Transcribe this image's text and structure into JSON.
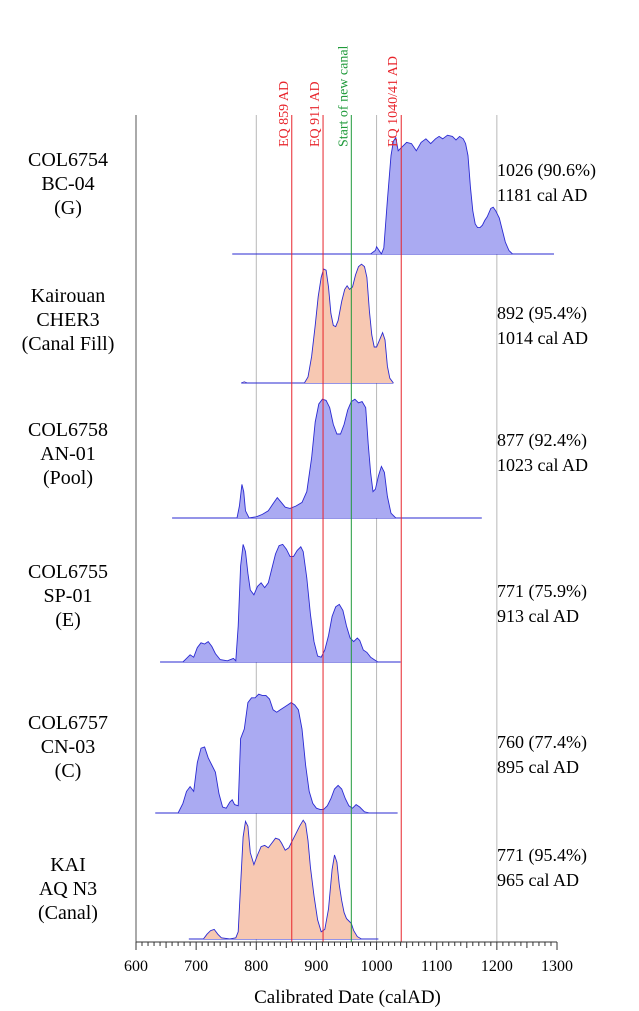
{
  "chart_data": {
    "type": "area",
    "xlabel": "Calibrated Date (calAD)",
    "xlim": [
      600,
      1300
    ],
    "xticks": [
      600,
      700,
      800,
      900,
      1000,
      1100,
      1200,
      1300
    ],
    "grid_lines": [
      800,
      1000,
      1200
    ],
    "event_lines": [
      {
        "x": 859,
        "label": "EQ 859 AD",
        "color": "#e8242b"
      },
      {
        "x": 911,
        "label": "EQ 911 AD",
        "color": "#e8242b"
      },
      {
        "x": 958,
        "label": "Start of new canal",
        "color": "#1f9a3a"
      },
      {
        "x": 1041,
        "label": "EQ 1040/41 AD",
        "color": "#e8242b"
      }
    ],
    "series": [
      {
        "label_lines": [
          "COL6754",
          "BC-04",
          "(G)"
        ],
        "range_lines": [
          "1026 (90.6%)",
          "1181 cal AD"
        ],
        "fill": "#aaaaf2",
        "stroke": "#2a2ad2",
        "line_from": 760,
        "line_to": 1295,
        "points": [
          [
            990,
            0
          ],
          [
            998,
            0.03
          ],
          [
            1000,
            0.06
          ],
          [
            1004,
            0.03
          ],
          [
            1008,
            0
          ],
          [
            1012,
            0.05
          ],
          [
            1018,
            0.45
          ],
          [
            1024,
            0.82
          ],
          [
            1028,
            0.94
          ],
          [
            1032,
            0.97
          ],
          [
            1036,
            0.86
          ],
          [
            1042,
            0.89
          ],
          [
            1050,
            0.93
          ],
          [
            1058,
            0.92
          ],
          [
            1066,
            0.86
          ],
          [
            1074,
            0.93
          ],
          [
            1082,
            0.96
          ],
          [
            1090,
            0.92
          ],
          [
            1098,
            0.96
          ],
          [
            1104,
            0.98
          ],
          [
            1110,
            0.96
          ],
          [
            1118,
            0.99
          ],
          [
            1126,
            0.98
          ],
          [
            1132,
            0.95
          ],
          [
            1138,
            0.98
          ],
          [
            1144,
            0.96
          ],
          [
            1148,
            0.92
          ],
          [
            1152,
            0.82
          ],
          [
            1156,
            0.56
          ],
          [
            1160,
            0.36
          ],
          [
            1164,
            0.25
          ],
          [
            1168,
            0.22
          ],
          [
            1172,
            0.22
          ],
          [
            1176,
            0.24
          ],
          [
            1180,
            0.28
          ],
          [
            1184,
            0.31
          ],
          [
            1190,
            0.38
          ],
          [
            1194,
            0.39
          ],
          [
            1198,
            0.36
          ],
          [
            1204,
            0.3
          ],
          [
            1208,
            0.22
          ],
          [
            1214,
            0.1
          ],
          [
            1220,
            0.03
          ],
          [
            1226,
            0
          ]
        ]
      },
      {
        "label_lines": [
          "Kairouan",
          "CHER3",
          "(Canal Fill)"
        ],
        "range_lines": [
          "892 (95.4%)",
          "1014 cal AD"
        ],
        "fill": "#f7c8b2",
        "stroke": "#2a2ad2",
        "line_from": 775,
        "line_to": 1028,
        "points": [
          [
            775,
            0
          ],
          [
            780,
            0.01
          ],
          [
            785,
            0
          ],
          [
            880,
            0
          ],
          [
            886,
            0.05
          ],
          [
            892,
            0.22
          ],
          [
            898,
            0.48
          ],
          [
            903,
            0.72
          ],
          [
            908,
            0.88
          ],
          [
            912,
            0.95
          ],
          [
            916,
            0.94
          ],
          [
            920,
            0.8
          ],
          [
            924,
            0.58
          ],
          [
            928,
            0.48
          ],
          [
            932,
            0.47
          ],
          [
            936,
            0.52
          ],
          [
            942,
            0.68
          ],
          [
            947,
            0.78
          ],
          [
            951,
            0.81
          ],
          [
            955,
            0.78
          ],
          [
            960,
            0.8
          ],
          [
            965,
            0.9
          ],
          [
            970,
            0.97
          ],
          [
            975,
            0.99
          ],
          [
            980,
            0.97
          ],
          [
            984,
            0.88
          ],
          [
            988,
            0.6
          ],
          [
            992,
            0.4
          ],
          [
            996,
            0.3
          ],
          [
            1000,
            0.3
          ],
          [
            1005,
            0.36
          ],
          [
            1010,
            0.42
          ],
          [
            1014,
            0.36
          ],
          [
            1018,
            0.14
          ],
          [
            1022,
            0.04
          ],
          [
            1028,
            0
          ]
        ]
      },
      {
        "label_lines": [
          "COL6758",
          "AN-01",
          "(Pool)"
        ],
        "range_lines": [
          "877 (92.4%)",
          "1023 cal AD"
        ],
        "fill": "#aaaaf2",
        "stroke": "#2a2ad2",
        "line_from": 660,
        "line_to": 1175,
        "points": [
          [
            768,
            0
          ],
          [
            772,
            0.1
          ],
          [
            776,
            0.28
          ],
          [
            779,
            0.22
          ],
          [
            782,
            0.06
          ],
          [
            788,
            0
          ],
          [
            800,
            0.01
          ],
          [
            810,
            0.03
          ],
          [
            820,
            0.06
          ],
          [
            828,
            0.12
          ],
          [
            835,
            0.17
          ],
          [
            840,
            0.14
          ],
          [
            848,
            0.09
          ],
          [
            856,
            0.08
          ],
          [
            866,
            0.1
          ],
          [
            876,
            0.13
          ],
          [
            884,
            0.22
          ],
          [
            892,
            0.5
          ],
          [
            898,
            0.8
          ],
          [
            904,
            0.95
          ],
          [
            910,
            0.99
          ],
          [
            916,
            0.98
          ],
          [
            922,
            0.92
          ],
          [
            928,
            0.78
          ],
          [
            934,
            0.7
          ],
          [
            940,
            0.7
          ],
          [
            946,
            0.78
          ],
          [
            952,
            0.9
          ],
          [
            958,
            0.97
          ],
          [
            964,
            0.99
          ],
          [
            970,
            0.96
          ],
          [
            976,
            0.97
          ],
          [
            982,
            0.92
          ],
          [
            986,
            0.62
          ],
          [
            990,
            0.38
          ],
          [
            994,
            0.22
          ],
          [
            998,
            0.24
          ],
          [
            1003,
            0.35
          ],
          [
            1008,
            0.43
          ],
          [
            1013,
            0.38
          ],
          [
            1018,
            0.18
          ],
          [
            1024,
            0.04
          ],
          [
            1032,
            0
          ]
        ]
      },
      {
        "label_lines": [
          "COL6755",
          "SP-01",
          "(E)"
        ],
        "range_lines": [
          "771 (75.9%)",
          "913 cal AD"
        ],
        "fill": "#aaaaf2",
        "stroke": "#2a2ad2",
        "line_from": 640,
        "line_to": 1040,
        "points": [
          [
            678,
            0
          ],
          [
            684,
            0.03
          ],
          [
            690,
            0.06
          ],
          [
            696,
            0.04
          ],
          [
            702,
            0.12
          ],
          [
            708,
            0.16
          ],
          [
            714,
            0.15
          ],
          [
            720,
            0.17
          ],
          [
            726,
            0.13
          ],
          [
            732,
            0.07
          ],
          [
            740,
            0.02
          ],
          [
            752,
            0.01
          ],
          [
            762,
            0.03
          ],
          [
            766,
            0.01
          ],
          [
            770,
            0.3
          ],
          [
            774,
            0.8
          ],
          [
            778,
            0.98
          ],
          [
            782,
            0.92
          ],
          [
            786,
            0.74
          ],
          [
            790,
            0.6
          ],
          [
            796,
            0.56
          ],
          [
            802,
            0.63
          ],
          [
            808,
            0.66
          ],
          [
            814,
            0.62
          ],
          [
            820,
            0.66
          ],
          [
            826,
            0.78
          ],
          [
            832,
            0.9
          ],
          [
            838,
            0.97
          ],
          [
            844,
            0.98
          ],
          [
            850,
            0.94
          ],
          [
            856,
            0.88
          ],
          [
            862,
            0.88
          ],
          [
            868,
            0.93
          ],
          [
            874,
            0.96
          ],
          [
            878,
            0.92
          ],
          [
            884,
            0.7
          ],
          [
            890,
            0.4
          ],
          [
            896,
            0.17
          ],
          [
            902,
            0.05
          ],
          [
            908,
            0.04
          ],
          [
            914,
            0.1
          ],
          [
            920,
            0.22
          ],
          [
            926,
            0.38
          ],
          [
            932,
            0.46
          ],
          [
            938,
            0.48
          ],
          [
            944,
            0.43
          ],
          [
            950,
            0.3
          ],
          [
            956,
            0.2
          ],
          [
            962,
            0.17
          ],
          [
            968,
            0.2
          ],
          [
            972,
            0.18
          ],
          [
            978,
            0.1
          ],
          [
            984,
            0.08
          ],
          [
            990,
            0.04
          ],
          [
            996,
            0.02
          ],
          [
            1002,
            0
          ]
        ]
      },
      {
        "label_lines": [
          "COL6757",
          "CN-03",
          "(C)"
        ],
        "range_lines": [
          "760 (77.4%)",
          "895 cal AD"
        ],
        "fill": "#aaaaf2",
        "stroke": "#2a2ad2",
        "line_from": 632,
        "line_to": 1035,
        "points": [
          [
            670,
            0
          ],
          [
            678,
            0.08
          ],
          [
            684,
            0.18
          ],
          [
            690,
            0.22
          ],
          [
            696,
            0.18
          ],
          [
            702,
            0.42
          ],
          [
            708,
            0.54
          ],
          [
            714,
            0.55
          ],
          [
            720,
            0.46
          ],
          [
            726,
            0.4
          ],
          [
            732,
            0.34
          ],
          [
            738,
            0.16
          ],
          [
            744,
            0.05
          ],
          [
            750,
            0.04
          ],
          [
            756,
            0.09
          ],
          [
            760,
            0.11
          ],
          [
            764,
            0.07
          ],
          [
            770,
            0.06
          ],
          [
            774,
            0.62
          ],
          [
            780,
            0.7
          ],
          [
            786,
            0.92
          ],
          [
            792,
            0.96
          ],
          [
            798,
            0.96
          ],
          [
            804,
            0.99
          ],
          [
            810,
            0.98
          ],
          [
            816,
            0.98
          ],
          [
            822,
            0.95
          ],
          [
            828,
            0.86
          ],
          [
            834,
            0.84
          ],
          [
            840,
            0.86
          ],
          [
            846,
            0.88
          ],
          [
            852,
            0.9
          ],
          [
            858,
            0.92
          ],
          [
            864,
            0.9
          ],
          [
            870,
            0.86
          ],
          [
            876,
            0.7
          ],
          [
            882,
            0.4
          ],
          [
            888,
            0.18
          ],
          [
            894,
            0.08
          ],
          [
            900,
            0.04
          ],
          [
            906,
            0.03
          ],
          [
            912,
            0.03
          ],
          [
            918,
            0.06
          ],
          [
            924,
            0.12
          ],
          [
            930,
            0.2
          ],
          [
            936,
            0.23
          ],
          [
            942,
            0.2
          ],
          [
            948,
            0.12
          ],
          [
            954,
            0.06
          ],
          [
            960,
            0.04
          ],
          [
            966,
            0.07
          ],
          [
            972,
            0.05
          ],
          [
            980,
            0.01
          ],
          [
            988,
            0
          ]
        ]
      },
      {
        "label_lines": [
          "KAI",
          "AQ N3",
          "(Canal)"
        ],
        "range_lines": [
          "771 (95.4%)",
          "965 cal AD"
        ],
        "fill": "#f7c8b2",
        "stroke": "#2a2ad2",
        "line_from": 688,
        "line_to": 1003,
        "points": [
          [
            688,
            0
          ],
          [
            700,
            0
          ],
          [
            712,
            0
          ],
          [
            718,
            0.04
          ],
          [
            724,
            0.07
          ],
          [
            730,
            0.08
          ],
          [
            736,
            0.04
          ],
          [
            742,
            0.01
          ],
          [
            756,
            0
          ],
          [
            766,
            0.01
          ],
          [
            770,
            0.06
          ],
          [
            774,
            0.45
          ],
          [
            778,
            0.85
          ],
          [
            782,
            0.98
          ],
          [
            786,
            0.94
          ],
          [
            790,
            0.72
          ],
          [
            796,
            0.62
          ],
          [
            802,
            0.7
          ],
          [
            808,
            0.77
          ],
          [
            814,
            0.78
          ],
          [
            820,
            0.76
          ],
          [
            826,
            0.8
          ],
          [
            832,
            0.84
          ],
          [
            838,
            0.83
          ],
          [
            842,
            0.8
          ],
          [
            848,
            0.74
          ],
          [
            854,
            0.76
          ],
          [
            860,
            0.82
          ],
          [
            866,
            0.88
          ],
          [
            872,
            0.94
          ],
          [
            878,
            0.99
          ],
          [
            882,
            0.96
          ],
          [
            886,
            0.82
          ],
          [
            890,
            0.6
          ],
          [
            896,
            0.36
          ],
          [
            902,
            0.16
          ],
          [
            908,
            0.06
          ],
          [
            914,
            0.08
          ],
          [
            920,
            0.25
          ],
          [
            926,
            0.58
          ],
          [
            930,
            0.7
          ],
          [
            934,
            0.64
          ],
          [
            938,
            0.45
          ],
          [
            942,
            0.32
          ],
          [
            946,
            0.22
          ],
          [
            950,
            0.17
          ],
          [
            954,
            0.15
          ],
          [
            958,
            0.13
          ],
          [
            962,
            0.07
          ],
          [
            968,
            0.02
          ],
          [
            975,
            0
          ]
        ]
      }
    ]
  }
}
